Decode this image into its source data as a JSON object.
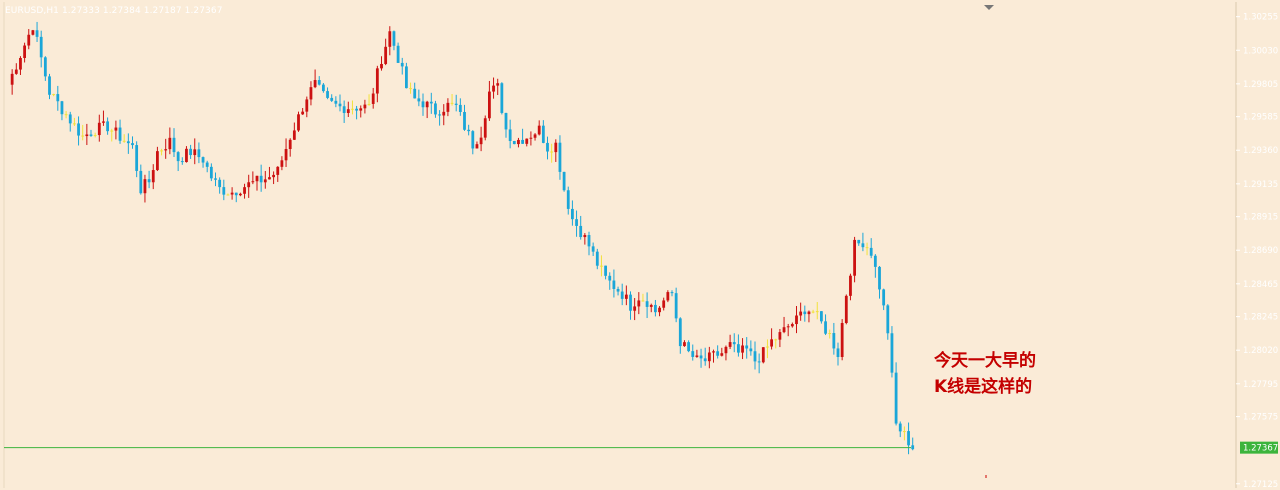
{
  "header": {
    "symbol": "EURUSD,H1",
    "ohlc": "1.27333 1.27384 1.27187 1.27367"
  },
  "annotation": {
    "line1": "今天一大早的",
    "line2": "K线是这样的"
  },
  "colors": {
    "background": "#faebd7",
    "bull": "#cc1111",
    "bear": "#1aa6d8",
    "doji": "#f2e23a",
    "bid_line": "#3cb43c",
    "annotation": "#c40000"
  },
  "chart_data": {
    "type": "candlestick",
    "symbol": "EURUSD",
    "timeframe": "H1",
    "ylim": [
      1.2711,
      1.3034
    ],
    "y_ticks": [
      "1.30255",
      "1.30030",
      "1.29805",
      "1.29585",
      "1.29360",
      "1.29135",
      "1.28915",
      "1.28690",
      "1.28465",
      "1.28245",
      "1.28020",
      "1.27795",
      "1.27575",
      "1.27125"
    ],
    "current_price_label": "1.27367",
    "current_price": 1.27367,
    "close_path": [
      [
        0,
        1.298
      ],
      [
        3,
        1.3
      ],
      [
        6,
        1.302
      ],
      [
        10,
        1.2975
      ],
      [
        14,
        1.296
      ],
      [
        18,
        1.2945
      ],
      [
        21,
        1.295
      ],
      [
        24,
        1.2952
      ],
      [
        27,
        1.2945
      ],
      [
        30,
        1.2938
      ],
      [
        32,
        1.291
      ],
      [
        34,
        1.2915
      ],
      [
        36,
        1.2935
      ],
      [
        39,
        1.2942
      ],
      [
        41,
        1.293
      ],
      [
        44,
        1.2935
      ],
      [
        47,
        1.293
      ],
      [
        49,
        1.2918
      ],
      [
        51,
        1.291
      ],
      [
        54,
        1.2908
      ],
      [
        57,
        1.2912
      ],
      [
        60,
        1.2915
      ],
      [
        63,
        1.2918
      ],
      [
        65,
        1.2922
      ],
      [
        68,
        1.2945
      ],
      [
        70,
        1.2958
      ],
      [
        72,
        1.2972
      ],
      [
        74,
        1.298
      ],
      [
        77,
        1.2968
      ],
      [
        80,
        1.2965
      ],
      [
        84,
        1.2965
      ],
      [
        87,
        1.2965
      ],
      [
        90,
        1.2998
      ],
      [
        92,
        1.3015
      ],
      [
        94,
        1.2998
      ],
      [
        96,
        1.2978
      ],
      [
        98,
        1.297
      ],
      [
        100,
        1.2968
      ],
      [
        103,
        1.2962
      ],
      [
        106,
        1.2966
      ],
      [
        108,
        1.2965
      ],
      [
        110,
        1.2952
      ],
      [
        112,
        1.294
      ],
      [
        114,
        1.2948
      ],
      [
        116,
        1.2975
      ],
      [
        118,
        1.2978
      ],
      [
        120,
        1.295
      ],
      [
        122,
        1.2942
      ],
      [
        125,
        1.2945
      ],
      [
        128,
        1.295
      ],
      [
        130,
        1.2938
      ],
      [
        132,
        1.294
      ],
      [
        134,
        1.291
      ],
      [
        136,
        1.289
      ],
      [
        138,
        1.2882
      ],
      [
        140,
        1.2872
      ],
      [
        142,
        1.286
      ],
      [
        144,
        1.285
      ],
      [
        146,
        1.2845
      ],
      [
        148,
        1.284
      ],
      [
        150,
        1.2832
      ],
      [
        152,
        1.2838
      ],
      [
        154,
        1.2835
      ],
      [
        156,
        1.2828
      ],
      [
        158,
        1.2835
      ],
      [
        160,
        1.284
      ],
      [
        162,
        1.2808
      ],
      [
        164,
        1.28
      ],
      [
        166,
        1.2795
      ],
      [
        168,
        1.2795
      ],
      [
        170,
        1.2798
      ],
      [
        172,
        1.28
      ],
      [
        174,
        1.2805
      ],
      [
        176,
        1.28
      ],
      [
        178,
        1.2802
      ],
      [
        180,
        1.2795
      ],
      [
        182,
        1.28
      ],
      [
        184,
        1.2808
      ],
      [
        186,
        1.2812
      ],
      [
        188,
        1.2818
      ],
      [
        190,
        1.2822
      ],
      [
        192,
        1.283
      ],
      [
        194,
        1.2828
      ],
      [
        196,
        1.282
      ],
      [
        198,
        1.2812
      ],
      [
        200,
        1.28
      ],
      [
        202,
        1.284
      ],
      [
        204,
        1.2872
      ],
      [
        206,
        1.2875
      ],
      [
        208,
        1.2868
      ],
      [
        210,
        1.2845
      ],
      [
        212,
        1.2815
      ],
      [
        214,
        1.2752
      ],
      [
        216,
        1.2745
      ],
      [
        218,
        1.2737
      ]
    ]
  }
}
